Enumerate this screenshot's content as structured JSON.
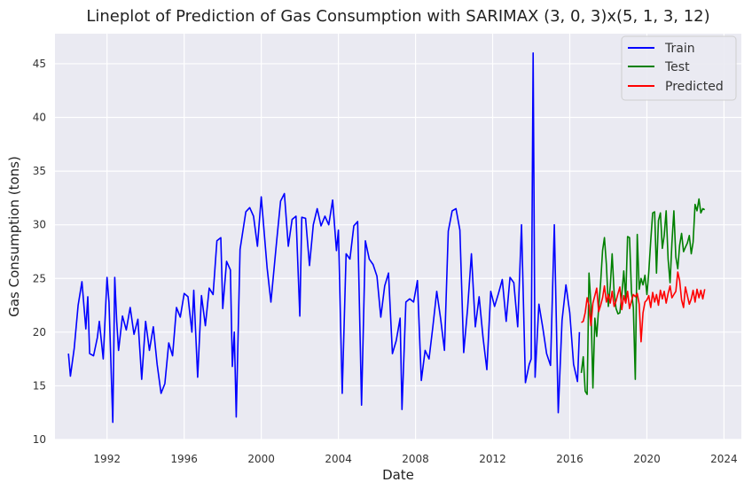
{
  "chart_data": {
    "type": "line",
    "title": "Lineplot of Prediction of Gas Consumption with SARIMAX (3, 0, 3)x(5, 1, 3, 12)",
    "xlabel": "Date",
    "ylabel": "Gas Consumption (tons)",
    "xlim": [
      1989.3,
      2024.9
    ],
    "ylim": [
      10,
      47.8
    ],
    "xticks": [
      1992,
      1996,
      2000,
      2004,
      2008,
      2012,
      2016,
      2020,
      2024
    ],
    "yticks": [
      10,
      15,
      20,
      25,
      30,
      35,
      40,
      45
    ],
    "grid": true,
    "legend_position": "top-right",
    "background": "#eaeaf2",
    "series": [
      {
        "name": "Train",
        "color": "#0000ff",
        "x": [
          1990.0,
          1990.1,
          1990.3,
          1990.5,
          1990.7,
          1990.9,
          1991.0,
          1991.1,
          1991.3,
          1991.5,
          1991.6,
          1991.8,
          1992.0,
          1992.1,
          1992.3,
          1992.4,
          1992.5,
          1992.6,
          1992.8,
          1993.0,
          1993.2,
          1993.4,
          1993.6,
          1993.8,
          1994.0,
          1994.2,
          1994.4,
          1994.6,
          1994.8,
          1995.0,
          1995.2,
          1995.4,
          1995.6,
          1995.8,
          1996.0,
          1996.2,
          1996.4,
          1996.5,
          1996.7,
          1996.9,
          1997.1,
          1997.3,
          1997.5,
          1997.7,
          1997.9,
          1998.0,
          1998.2,
          1998.4,
          1998.5,
          1998.6,
          1998.7,
          1998.9,
          1999.2,
          1999.4,
          1999.6,
          1999.8,
          2000.0,
          2000.3,
          2000.5,
          2000.8,
          2001.0,
          2001.2,
          2001.4,
          2001.6,
          2001.8,
          2002.0,
          2002.1,
          2002.3,
          2002.5,
          2002.7,
          2002.9,
          2003.1,
          2003.3,
          2003.5,
          2003.7,
          2003.9,
          2004.0,
          2004.2,
          2004.4,
          2004.6,
          2004.8,
          2005.0,
          2005.2,
          2005.4,
          2005.6,
          2005.8,
          2006.0,
          2006.2,
          2006.4,
          2006.6,
          2006.8,
          2007.0,
          2007.2,
          2007.3,
          2007.5,
          2007.7,
          2007.9,
          2008.1,
          2008.3,
          2008.5,
          2008.7,
          2008.9,
          2009.1,
          2009.3,
          2009.5,
          2009.7,
          2009.9,
          2010.1,
          2010.3,
          2010.5,
          2010.7,
          2010.9,
          2011.1,
          2011.3,
          2011.5,
          2011.7,
          2011.9,
          2012.1,
          2012.3,
          2012.5,
          2012.7,
          2012.9,
          2013.1,
          2013.3,
          2013.5,
          2013.7,
          2013.9,
          2014.0,
          2014.1,
          2014.2,
          2014.4,
          2014.6,
          2014.8,
          2015.0,
          2015.2,
          2015.4,
          2015.6,
          2015.8,
          2016.0,
          2016.2,
          2016.4,
          2016.5
        ],
        "y": [
          18.0,
          15.9,
          18.5,
          22.5,
          24.7,
          20.3,
          23.3,
          18.0,
          17.8,
          19.5,
          21.0,
          17.5,
          25.1,
          22.8,
          11.6,
          25.1,
          21.0,
          18.3,
          21.5,
          20.2,
          22.3,
          19.8,
          21.2,
          15.6,
          21.0,
          18.3,
          20.5,
          17.0,
          14.3,
          15.2,
          19.0,
          17.8,
          22.3,
          21.4,
          23.6,
          23.3,
          20.0,
          23.9,
          15.8,
          23.4,
          20.6,
          24.1,
          23.5,
          28.5,
          28.8,
          22.2,
          26.6,
          25.8,
          16.8,
          20.0,
          12.1,
          27.7,
          31.2,
          31.6,
          30.8,
          28.0,
          32.6,
          26.0,
          22.8,
          28.5,
          32.2,
          32.9,
          28.0,
          30.5,
          30.8,
          21.5,
          30.7,
          30.6,
          26.2,
          30.0,
          31.5,
          29.9,
          30.8,
          30.0,
          32.3,
          27.6,
          29.5,
          14.3,
          27.3,
          26.8,
          29.9,
          30.3,
          13.2,
          28.5,
          26.8,
          26.3,
          25.2,
          21.4,
          24.3,
          25.5,
          18.0,
          19.2,
          21.3,
          12.8,
          22.8,
          23.1,
          22.8,
          24.8,
          15.5,
          18.3,
          17.5,
          20.5,
          23.8,
          21.3,
          18.3,
          29.4,
          31.3,
          31.5,
          29.5,
          18.1,
          22.2,
          27.3,
          20.5,
          23.3,
          19.5,
          16.5,
          23.8,
          22.4,
          23.6,
          24.9,
          21.0,
          25.1,
          24.6,
          20.5,
          30.0,
          15.3,
          17.0,
          17.5,
          46.0,
          15.8,
          22.6,
          20.4,
          18.0,
          16.9,
          30.0,
          12.5,
          21.1,
          24.4,
          21.8,
          17.0,
          15.4,
          20.0
        ]
      },
      {
        "name": "Test",
        "color": "#008000",
        "x": [
          2016.6,
          2016.7,
          2016.8,
          2016.9,
          2017.0,
          2017.1,
          2017.2,
          2017.3,
          2017.4,
          2017.5,
          2017.6,
          2017.7,
          2017.8,
          2017.9,
          2018.0,
          2018.1,
          2018.2,
          2018.3,
          2018.4,
          2018.5,
          2018.6,
          2018.7,
          2018.8,
          2018.9,
          2019.0,
          2019.1,
          2019.2,
          2019.3,
          2019.4,
          2019.5,
          2019.6,
          2019.7,
          2019.8,
          2019.9,
          2020.0,
          2020.1,
          2020.2,
          2020.3,
          2020.4,
          2020.5,
          2020.6,
          2020.7,
          2020.8,
          2020.9,
          2021.0,
          2021.1,
          2021.2,
          2021.3,
          2021.4,
          2021.5,
          2021.6,
          2021.7,
          2021.8,
          2021.9,
          2022.0,
          2022.1,
          2022.2,
          2022.3,
          2022.4,
          2022.5,
          2022.6,
          2022.7,
          2022.8,
          2022.9,
          2023.0
        ],
        "y": [
          16.2,
          17.7,
          14.5,
          14.2,
          25.5,
          22.5,
          14.8,
          21.3,
          19.6,
          22.3,
          24.6,
          27.6,
          28.8,
          26.3,
          22.4,
          24.3,
          27.3,
          23.7,
          22.2,
          21.7,
          21.8,
          23.5,
          25.7,
          23.1,
          28.9,
          28.8,
          23.7,
          22.3,
          15.6,
          29.1,
          24.0,
          25.0,
          24.4,
          25.3,
          23.5,
          25.6,
          28.5,
          31.1,
          31.2,
          25.5,
          30.4,
          31.1,
          27.8,
          29.0,
          31.3,
          26.8,
          24.6,
          28.3,
          31.3,
          27.0,
          25.9,
          28.1,
          29.2,
          27.5,
          27.9,
          28.3,
          29.0,
          27.3,
          28.4,
          31.9,
          31.3,
          32.4,
          31.1,
          31.5,
          31.4
        ]
      },
      {
        "name": "Predicted",
        "color": "#ff0000",
        "x": [
          2016.6,
          2016.7,
          2016.8,
          2016.9,
          2017.0,
          2017.1,
          2017.2,
          2017.3,
          2017.4,
          2017.5,
          2017.6,
          2017.7,
          2017.8,
          2017.9,
          2018.0,
          2018.1,
          2018.2,
          2018.3,
          2018.4,
          2018.5,
          2018.6,
          2018.7,
          2018.8,
          2018.9,
          2019.0,
          2019.1,
          2019.2,
          2019.3,
          2019.4,
          2019.5,
          2019.6,
          2019.7,
          2019.8,
          2019.9,
          2020.0,
          2020.1,
          2020.2,
          2020.3,
          2020.4,
          2020.5,
          2020.6,
          2020.7,
          2020.8,
          2020.9,
          2021.0,
          2021.1,
          2021.2,
          2021.3,
          2021.4,
          2021.5,
          2021.6,
          2021.7,
          2021.8,
          2021.9,
          2022.0,
          2022.1,
          2022.2,
          2022.3,
          2022.4,
          2022.5,
          2022.6,
          2022.7,
          2022.8,
          2022.9,
          2023.0
        ],
        "y": [
          20.9,
          21.0,
          21.8,
          23.2,
          22.5,
          20.6,
          22.7,
          23.4,
          24.1,
          21.9,
          22.5,
          23.2,
          24.3,
          22.8,
          23.5,
          22.7,
          23.8,
          22.4,
          22.9,
          23.6,
          24.2,
          22.1,
          23.4,
          22.7,
          23.8,
          22.2,
          22.9,
          23.5,
          23.3,
          23.6,
          22.6,
          19.1,
          21.8,
          22.8,
          23.0,
          23.4,
          22.3,
          23.7,
          22.8,
          23.5,
          22.5,
          23.9,
          23.1,
          23.8,
          22.7,
          23.6,
          24.3,
          23.2,
          23.5,
          23.8,
          25.6,
          24.8,
          23.0,
          22.3,
          24.2,
          23.4,
          22.6,
          23.1,
          23.9,
          22.8,
          24.0,
          23.2,
          23.9,
          23.1,
          24.0
        ]
      }
    ]
  }
}
